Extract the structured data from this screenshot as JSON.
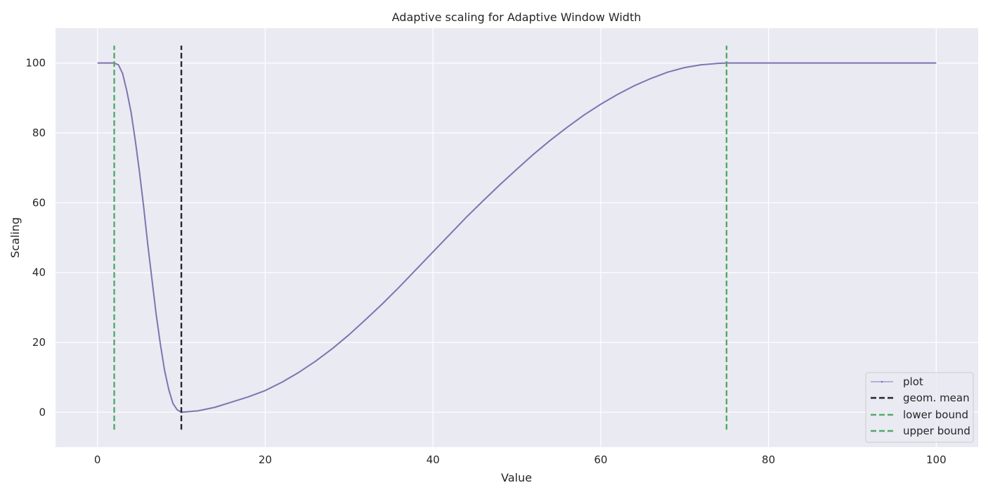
{
  "chart_data": {
    "type": "line",
    "title": "Adaptive scaling for Adaptive Window Width",
    "xlabel": "Value",
    "ylabel": "Scaling",
    "xlim": [
      -5,
      105
    ],
    "ylim": [
      -10,
      110
    ],
    "xticks": [
      0,
      20,
      40,
      60,
      80,
      100
    ],
    "yticks": [
      0,
      20,
      40,
      60,
      80,
      100
    ],
    "grid": true,
    "legend_position": "bottom-right",
    "colors": {
      "background": "#eaeaf2",
      "grid": "#ffffff",
      "plot": "#8172b3",
      "geom_mean": "#262626",
      "bounds": "#55a868"
    },
    "series": [
      {
        "name": "plot",
        "style": "solid-thin-with-markers",
        "x": [
          0,
          1,
          2,
          2.5,
          3,
          3.5,
          4,
          4.5,
          5,
          5.5,
          6,
          6.5,
          7,
          7.5,
          8,
          8.5,
          9,
          9.5,
          10,
          12,
          14,
          16,
          18,
          20,
          22,
          24,
          26,
          28,
          30,
          32,
          34,
          36,
          38,
          40,
          42,
          44,
          46,
          48,
          50,
          52,
          54,
          56,
          58,
          60,
          62,
          64,
          66,
          68,
          70,
          72,
          74,
          75,
          80,
          90,
          100
        ],
        "y": [
          100,
          100,
          100,
          99.5,
          97,
          92,
          86,
          78,
          69,
          59,
          48,
          38,
          28,
          19.5,
          12,
          6.5,
          2.5,
          0.7,
          0,
          0.4,
          1.4,
          2.9,
          4.4,
          6.2,
          8.6,
          11.4,
          14.6,
          18.2,
          22.2,
          26.6,
          31.1,
          35.9,
          40.9,
          45.9,
          50.9,
          55.9,
          60.6,
          65.2,
          69.6,
          73.9,
          77.9,
          81.6,
          85.1,
          88.2,
          91.0,
          93.5,
          95.6,
          97.4,
          98.7,
          99.5,
          99.9,
          100,
          100,
          100,
          100
        ]
      },
      {
        "name": "geom. mean",
        "style": "dashed",
        "x": [
          10,
          10
        ],
        "y": [
          -5,
          105
        ]
      },
      {
        "name": "lower bound",
        "style": "dashed",
        "x": [
          2,
          2
        ],
        "y": [
          -5,
          105
        ]
      },
      {
        "name": "upper bound",
        "style": "dashed",
        "x": [
          75,
          75
        ],
        "y": [
          -5,
          105
        ]
      }
    ]
  }
}
